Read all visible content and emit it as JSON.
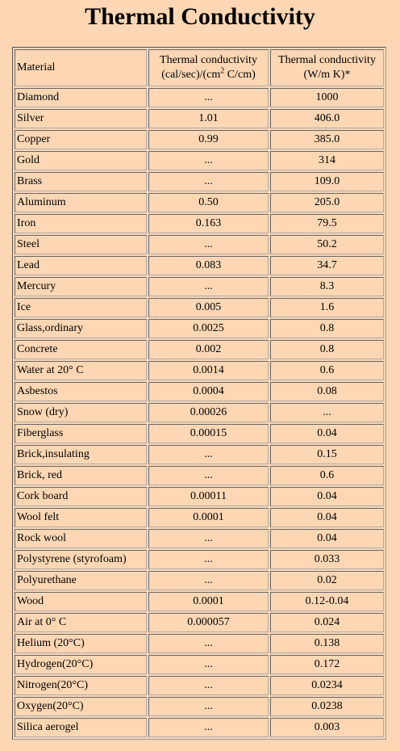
{
  "title": "Thermal Conductivity",
  "headers": {
    "material": "Material",
    "cal_line1": "Thermal conductivity",
    "cal_line2_pre": "(cal/sec)/(cm",
    "cal_line2_sup": "2",
    "cal_line2_post": " C/cm)",
    "wmk_line1": "Thermal conductivity",
    "wmk_line2": "(W/m K)*"
  },
  "rows": [
    {
      "material": "Diamond",
      "cal": "...",
      "wmk": "1000"
    },
    {
      "material": "Silver",
      "cal": "1.01",
      "wmk": "406.0"
    },
    {
      "material": "Copper",
      "cal": "0.99",
      "wmk": "385.0"
    },
    {
      "material": "Gold",
      "cal": "...",
      "wmk": "314"
    },
    {
      "material": "Brass",
      "cal": "...",
      "wmk": "109.0"
    },
    {
      "material": "Aluminum",
      "cal": "0.50",
      "wmk": "205.0"
    },
    {
      "material": "Iron",
      "cal": "0.163",
      "wmk": "79.5"
    },
    {
      "material": "Steel",
      "cal": "...",
      "wmk": "50.2"
    },
    {
      "material": "Lead",
      "cal": "0.083",
      "wmk": "34.7"
    },
    {
      "material": "Mercury",
      "cal": "...",
      "wmk": "8.3"
    },
    {
      "material": "Ice",
      "cal": "0.005",
      "wmk": "1.6"
    },
    {
      "material": "Glass,ordinary",
      "cal": "0.0025",
      "wmk": "0.8"
    },
    {
      "material": "Concrete",
      "cal": "0.002",
      "wmk": "0.8"
    },
    {
      "material": "Water at 20° C",
      "cal": "0.0014",
      "wmk": "0.6"
    },
    {
      "material": "Asbestos",
      "cal": "0.0004",
      "wmk": "0.08"
    },
    {
      "material": "Snow (dry)",
      "cal": "0.00026",
      "wmk": "..."
    },
    {
      "material": "Fiberglass",
      "cal": "0.00015",
      "wmk": "0.04"
    },
    {
      "material": "Brick,insulating",
      "cal": "...",
      "wmk": "0.15"
    },
    {
      "material": "Brick, red",
      "cal": "...",
      "wmk": "0.6"
    },
    {
      "material": "Cork board",
      "cal": "0.00011",
      "wmk": "0.04"
    },
    {
      "material": "Wool felt",
      "cal": "0.0001",
      "wmk": "0.04"
    },
    {
      "material": "Rock wool",
      "cal": "...",
      "wmk": "0.04"
    },
    {
      "material": "Polystyrene (styrofoam)",
      "cal": "...",
      "wmk": "0.033"
    },
    {
      "material": "Polyurethane",
      "cal": "...",
      "wmk": "0.02"
    },
    {
      "material": "Wood",
      "cal": "0.0001",
      "wmk": "0.12-0.04"
    },
    {
      "material": "Air at 0° C",
      "cal": "0.000057",
      "wmk": "0.024"
    },
    {
      "material": "Helium (20°C)",
      "cal": "...",
      "wmk": "0.138"
    },
    {
      "material": "Hydrogen(20°C)",
      "cal": "...",
      "wmk": "0.172"
    },
    {
      "material": "Nitrogen(20°C)",
      "cal": "...",
      "wmk": "0.0234"
    },
    {
      "material": "Oxygen(20°C)",
      "cal": "...",
      "wmk": "0.0238"
    },
    {
      "material": "Silica aerogel",
      "cal": "...",
      "wmk": "0.003"
    }
  ]
}
